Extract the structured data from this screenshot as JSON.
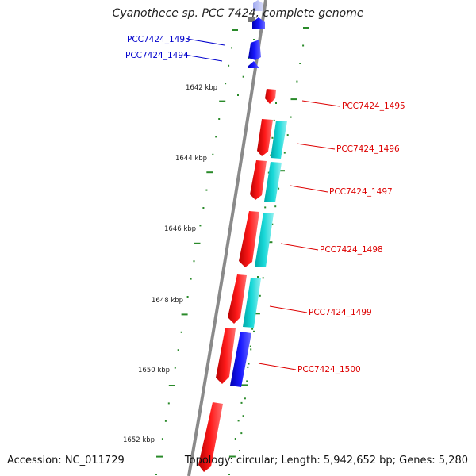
{
  "title": "Cyanothece sp. PCC 7424, complete genome",
  "accession": "Accession: NC_011729",
  "summary": "Topology: circular; Length: 5,942,652 bp; Genes: 5,280",
  "colors": {
    "forward_cds": "#ff0000",
    "reverse_cds": "#0000ff",
    "cyan_feature": "#00cccc",
    "ticks": "#2a8a2a",
    "backbone": "#888888",
    "label_blue": "#0000cc",
    "label_red": "#dd0000"
  },
  "scale_labels": [
    "1642 kbp",
    "1644 kbp",
    "1646 kbp",
    "1648 kbp",
    "1650 kbp",
    "1652 kbp"
  ],
  "gene_labels": [
    {
      "text": "PCC7424_1493",
      "color": "blue"
    },
    {
      "text": "PCC7424_1494",
      "color": "blue"
    },
    {
      "text": "PCC7424_1495",
      "color": "red"
    },
    {
      "text": "PCC7424_1496",
      "color": "red"
    },
    {
      "text": "PCC7424_1497",
      "color": "red"
    },
    {
      "text": "PCC7424_1498",
      "color": "red"
    },
    {
      "text": "PCC7424_1499",
      "color": "red"
    },
    {
      "text": "PCC7424_1500",
      "color": "red"
    }
  ]
}
